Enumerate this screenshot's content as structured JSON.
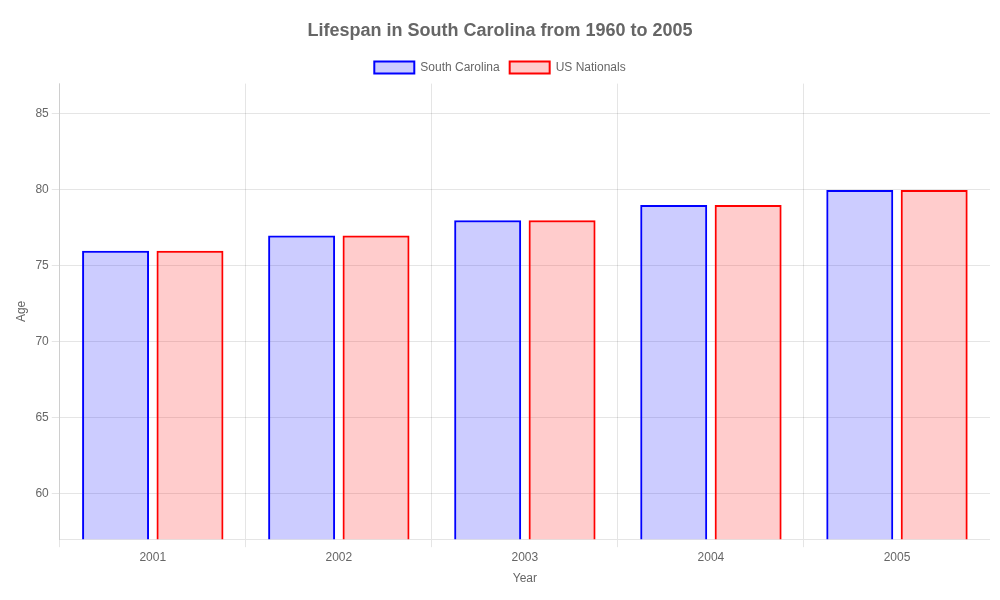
{
  "chart_data": {
    "type": "bar",
    "title": "Lifespan in South Carolina from 1960 to 2005",
    "x_label": "Year",
    "y_label": "Age",
    "categories": [
      "2001",
      "2002",
      "2003",
      "2004",
      "2005"
    ],
    "series": [
      {
        "name": "South Carolina",
        "color": "#0000ff",
        "values": [
          76,
          77,
          78,
          79,
          80
        ]
      },
      {
        "name": "US Nationals",
        "color": "#ff0000",
        "values": [
          76,
          77,
          78,
          79,
          80
        ]
      }
    ],
    "ylim": [
      57,
      87
    ],
    "yticks": [
      60,
      65,
      70,
      75,
      80,
      85
    ],
    "grid": true,
    "legend": "top"
  }
}
